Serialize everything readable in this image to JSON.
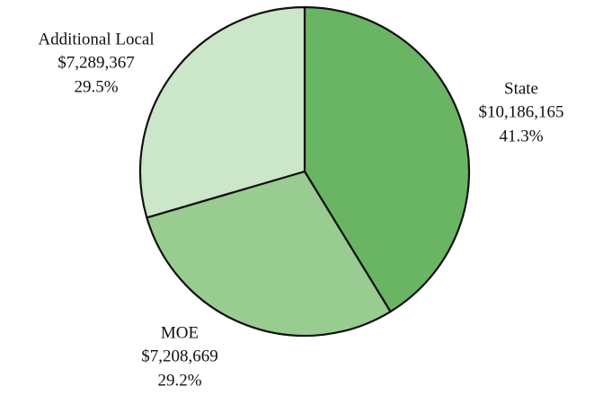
{
  "chart_data": {
    "type": "pie",
    "categories": [
      "State",
      "MOE",
      "Additional Local"
    ],
    "values": [
      10186165,
      7208669,
      7289367
    ],
    "value_labels": [
      "$10,186,165",
      "$7,208,669",
      "$7,289,367"
    ],
    "percents": [
      41.3,
      29.2,
      29.5
    ],
    "percent_labels": [
      "41.3%",
      "29.2%",
      "29.5%"
    ],
    "colors": [
      "#69b563",
      "#99cc90",
      "#cce6c9"
    ]
  }
}
